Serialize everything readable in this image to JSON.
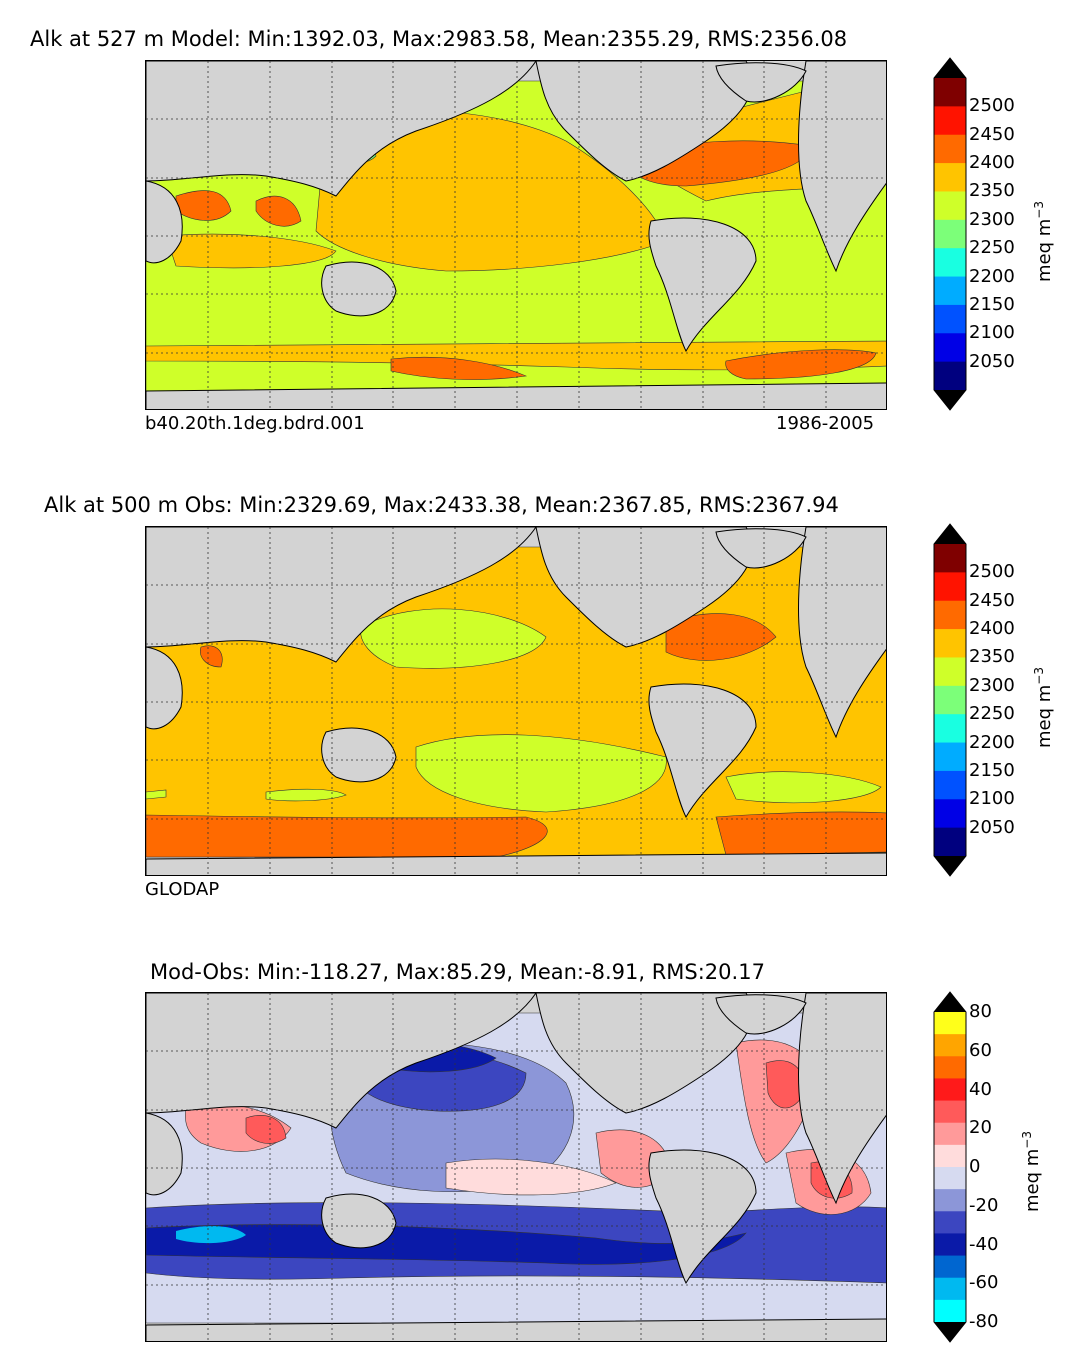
{
  "chart_data": [
    {
      "type": "heatmap",
      "title": "Alk at 527 m Model: Min:1392.03, Max:2983.58, Mean:2355.29, RMS:2356.08",
      "case_label": "b40.20th.1deg.bdrd.001",
      "years_label": "1986-2005",
      "colorbar": {
        "unit": "meq m",
        "unit_exp": "−3",
        "levels": [
          2050,
          2100,
          2150,
          2200,
          2250,
          2300,
          2350,
          2400,
          2450,
          2500
        ],
        "tick_labels": [
          "2050",
          "2100",
          "2150",
          "2200",
          "2250",
          "2300",
          "2350",
          "2400",
          "2450",
          "2500"
        ],
        "colors": [
          "#00007f",
          "#0000e6",
          "#0052ff",
          "#00acff",
          "#19ffe1",
          "#7cff79",
          "#cfff29",
          "#ffc400",
          "#ff6a00",
          "#ff1300",
          "#7f0000"
        ],
        "under_color": "#000000",
        "over_color": "#000000"
      },
      "field_colors": {
        "ocean_main": "#cfff29",
        "higher": "#ffc400",
        "highest": "#ff6a00",
        "low_spot": "#7cff79"
      }
    },
    {
      "type": "heatmap",
      "title": "Alk at 500 m Obs: Min:2329.69, Max:2433.38, Mean:2367.85, RMS:2367.94",
      "source_label": "GLODAP",
      "colorbar": {
        "unit": "meq m",
        "unit_exp": "−3",
        "levels": [
          2050,
          2100,
          2150,
          2200,
          2250,
          2300,
          2350,
          2400,
          2450,
          2500
        ],
        "tick_labels": [
          "2050",
          "2100",
          "2150",
          "2200",
          "2250",
          "2300",
          "2350",
          "2400",
          "2450",
          "2500"
        ],
        "colors": [
          "#00007f",
          "#0000e6",
          "#0052ff",
          "#00acff",
          "#19ffe1",
          "#7cff79",
          "#cfff29",
          "#ffc400",
          "#ff6a00",
          "#ff1300",
          "#7f0000"
        ],
        "under_color": "#000000",
        "over_color": "#000000"
      },
      "field_colors": {
        "ocean_main": "#ffc400",
        "lower": "#cfff29",
        "higher": "#ff6a00"
      }
    },
    {
      "type": "heatmap",
      "title": "Mod-Obs: Min:-118.27, Max:85.29, Mean:-8.91, RMS:20.17",
      "colorbar": {
        "unit": "meq m",
        "unit_exp": "−3",
        "levels": [
          -80,
          -60,
          -40,
          -20,
          0,
          20,
          40,
          60,
          80
        ],
        "tick_labels": [
          "-80",
          "-60",
          "-40",
          "-20",
          "0",
          "20",
          "40",
          "60",
          "80"
        ],
        "colors": [
          "#00ffff",
          "#00b9f0",
          "#0066d0",
          "#0a1aa8",
          "#3c46c0",
          "#8c96d8",
          "#d6daf0",
          "#ffdcdc",
          "#ff9a9a",
          "#ff5a5a",
          "#ff1a1a",
          "#ff6a00",
          "#ffa500",
          "#ffff1a"
        ],
        "under_color": "#000000",
        "over_color": "#000000"
      },
      "field_colors": {
        "near_zero_neg": "#d6daf0",
        "near_zero_pos": "#ffdcdc",
        "neg_mid": "#8c96d8",
        "neg_strong": "#3c46c0",
        "neg_deep": "#0a1aa8",
        "pos_mid": "#ff9a9a",
        "pos_strong": "#ff5a5a"
      }
    }
  ]
}
